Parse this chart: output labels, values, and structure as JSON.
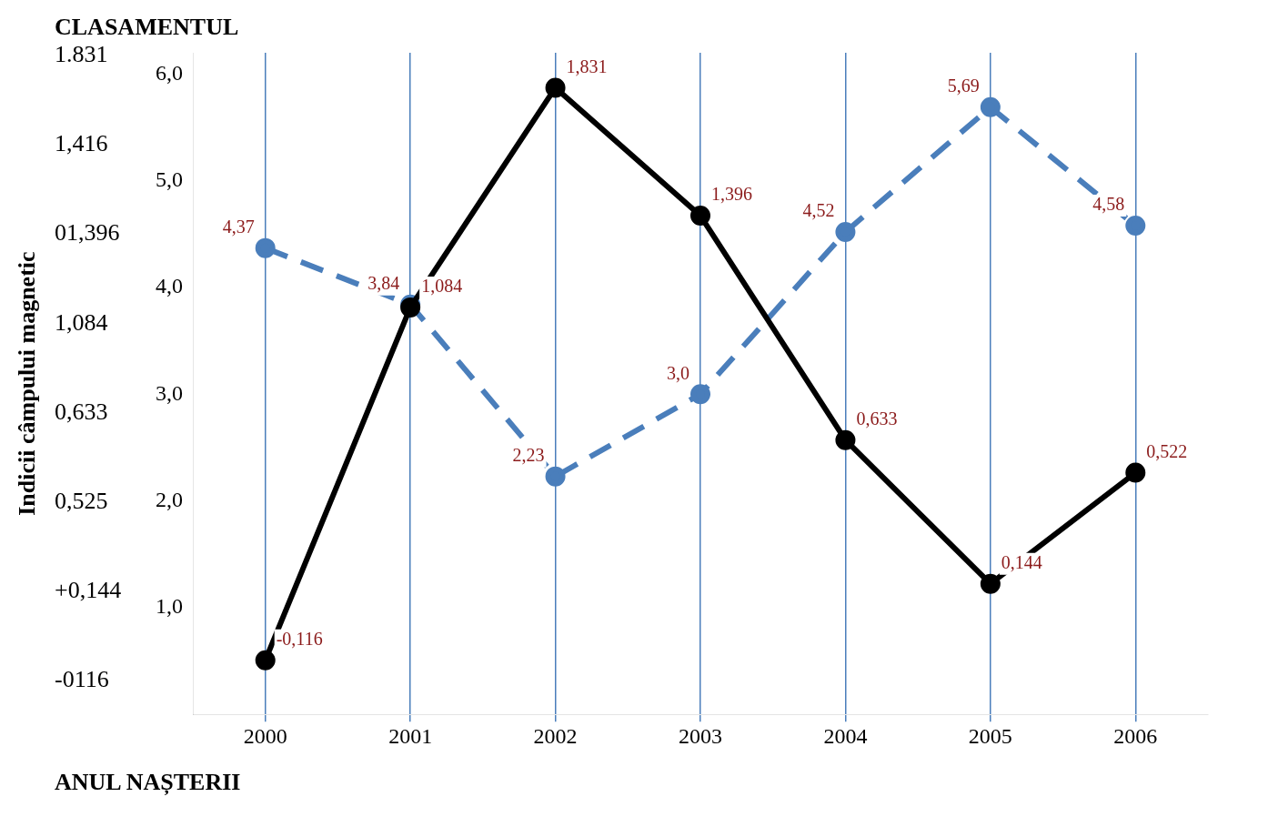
{
  "chart_data": {
    "type": "line",
    "title": "CLASAMENTUL",
    "ylabel": "Indicii câmpului magnetic",
    "xlabel": "ANUL NAȘTERII",
    "annotations": [
      "1.831",
      "1,416",
      "01,396",
      "1,084",
      "0,633",
      "0,525",
      "+0,144",
      "-0116"
    ],
    "categories": [
      "2000",
      "2001",
      "2002",
      "2003",
      "2004",
      "2005",
      "2006"
    ],
    "series": [
      {
        "color": "#000000",
        "line_style": "solid",
        "axis": "y2",
        "values": [
          -0.116,
          1.084,
          1.831,
          1.396,
          0.633,
          0.144,
          0.522
        ],
        "value_labels": [
          "-0,116",
          "1,084",
          "1,831",
          "1,396",
          "0,633",
          "0,144",
          "0,522"
        ]
      },
      {
        "color": "#4a7ebb",
        "line_style": "dashed",
        "values": [
          4.37,
          3.84,
          2.23,
          3.0,
          4.52,
          5.69,
          4.58
        ],
        "value_labels": [
          "4,37",
          "3,84",
          "2,23",
          "3,0",
          "4,52",
          "5,69",
          "4,58"
        ]
      }
    ],
    "y2lim": [
      -0.3,
      1.95
    ],
    "ylim": [
      0,
      6.2
    ],
    "yticks": [
      {
        "value": 1,
        "label": "1,0"
      },
      {
        "value": 2,
        "label": "2,0"
      },
      {
        "value": 3,
        "label": "3,0"
      },
      {
        "value": 4,
        "label": "4,0"
      },
      {
        "value": 5,
        "label": "5,0"
      },
      {
        "value": 6,
        "label": "6,0"
      }
    ],
    "grid": "x",
    "marker": "circle",
    "legend": false
  }
}
